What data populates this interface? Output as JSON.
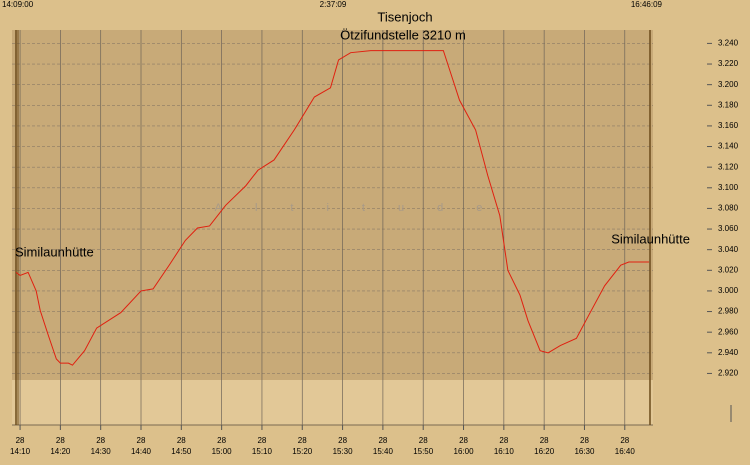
{
  "chart_data": {
    "type": "line",
    "start_label": "14:09:00",
    "duration_label": "2:37:09",
    "end_label": "16:46:09",
    "watermark": "Altitude",
    "annotations": [
      {
        "text": "Tisenjoch"
      },
      {
        "text": "Ötzifundstelle 3210 m"
      },
      {
        "text": "Similaunhütte"
      },
      {
        "text": "Similaunhütte"
      }
    ],
    "x_day": "28",
    "x": [
      "14:09",
      "14:10",
      "14:12",
      "14:14",
      "14:15",
      "14:17",
      "14:19",
      "14:20",
      "14:22",
      "14:23",
      "14:26",
      "14:29",
      "14:35",
      "14:40",
      "14:43",
      "14:47",
      "14:51",
      "14:54",
      "14:57",
      "15:01",
      "15:06",
      "15:09",
      "15:13",
      "15:18",
      "15:23",
      "15:27",
      "15:29",
      "15:32",
      "15:37",
      "15:44",
      "15:50",
      "15:55",
      "15:57",
      "15:59",
      "16:03",
      "16:06",
      "16:09",
      "16:11",
      "16:14",
      "16:16",
      "16:19",
      "16:21",
      "16:24",
      "16:28",
      "16:31",
      "16:35",
      "16:39",
      "16:41",
      "16:46"
    ],
    "series": [
      {
        "color": "#e02010",
        "values": [
          3018,
          3015,
          3018,
          3000,
          2981,
          2957,
          2934,
          2930,
          2930,
          2928,
          2942,
          2964,
          2979,
          3000,
          3002,
          3025,
          3049,
          3061,
          3063,
          3083,
          3102,
          3117,
          3127,
          3156,
          3188,
          3197,
          3224,
          3231,
          3233,
          3233,
          3233,
          3233,
          3209,
          3185,
          3156,
          3112,
          3073,
          3020,
          2996,
          2971,
          2942,
          2940,
          2947,
          2954,
          2976,
          3005,
          3025,
          3028,
          3028
        ]
      }
    ],
    "xlim": [
      "14:08",
      "16:47"
    ],
    "xticks": [
      "14:10",
      "14:20",
      "14:30",
      "14:40",
      "14:50",
      "15:00",
      "15:10",
      "15:20",
      "15:30",
      "15:40",
      "15:50",
      "16:00",
      "16:10",
      "16:20",
      "16:30",
      "16:40"
    ],
    "ylim": [
      2870,
      3253
    ],
    "yticks": [
      {
        "value": 2920,
        "label": "2.920"
      },
      {
        "value": 2940,
        "label": "2.940"
      },
      {
        "value": 2960,
        "label": "2.960"
      },
      {
        "value": 2980,
        "label": "2.980"
      },
      {
        "value": 3000,
        "label": "3.000"
      },
      {
        "value": 3020,
        "label": "3.020"
      },
      {
        "value": 3040,
        "label": "3.040"
      },
      {
        "value": 3060,
        "label": "3.060"
      },
      {
        "value": 3080,
        "label": "3.080"
      },
      {
        "value": 3100,
        "label": "3.100"
      },
      {
        "value": 3120,
        "label": "3.120"
      },
      {
        "value": 3140,
        "label": "3.140"
      },
      {
        "value": 3160,
        "label": "3.160"
      },
      {
        "value": 3180,
        "label": "3.180"
      },
      {
        "value": 3200,
        "label": "3.200"
      },
      {
        "value": 3220,
        "label": "3.220"
      },
      {
        "value": 3240,
        "label": "3.240"
      }
    ],
    "grid": true
  }
}
